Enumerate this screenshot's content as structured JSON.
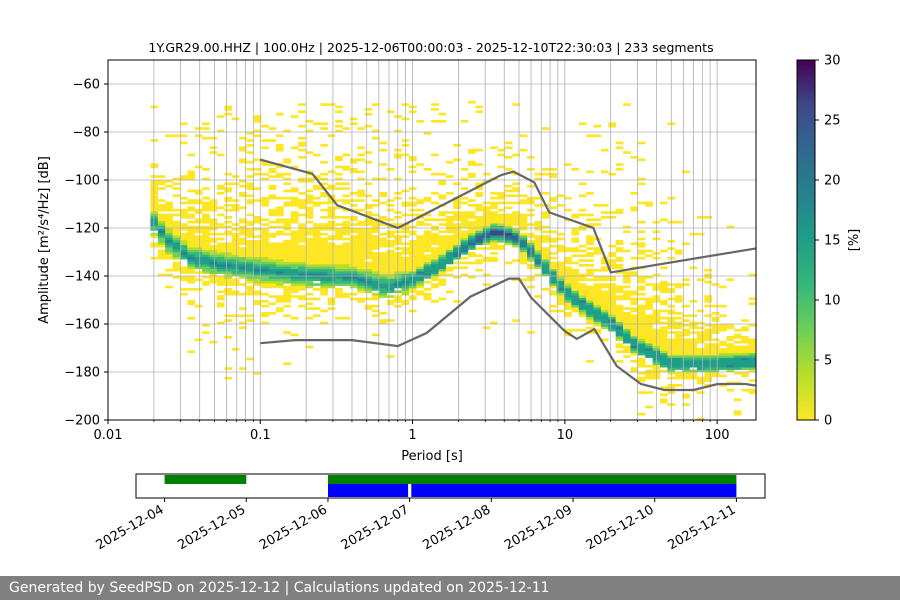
{
  "title": "1Y.GR29.00.HHZ | 100.0Hz | 2025-12-06T00:00:03 - 2025-12-10T22:30:03 | 233 segments",
  "footer": "Generated by SeedPSD on 2025-12-12 | Calculations updated on 2025-12-11",
  "colors": {
    "noise_model": "#666666",
    "availability_a": "#008000",
    "availability_b": "#0000ff",
    "grid": "#b0b0b0"
  },
  "chart_data": [
    {
      "type": "heatmap",
      "xlabel": "Period [s]",
      "ylabel": "Amplitude [m²/s⁴/Hz] [dB]",
      "xscale": "log",
      "xlim": [
        0.01,
        180
      ],
      "ylim": [
        -200,
        -50
      ],
      "xtick_values": [
        0.01,
        0.1,
        1,
        10,
        100
      ],
      "xtick_labels": [
        "0.01",
        "0.1",
        "1",
        "10",
        "100"
      ],
      "ytick_values": [
        -200,
        -180,
        -160,
        -140,
        -120,
        -100,
        -80,
        -60
      ],
      "ytick_labels": [
        "−200",
        "−180",
        "−160",
        "−140",
        "−120",
        "−100",
        "−80",
        "−60"
      ],
      "grid": true,
      "colormap": "viridis_r",
      "colorbar": {
        "label": "[%]",
        "range": [
          0,
          30
        ],
        "tick_values": [
          0,
          5,
          10,
          15,
          20,
          25,
          30
        ],
        "tick_labels": [
          "0",
          "5",
          "10",
          "15",
          "20",
          "25",
          "30"
        ]
      },
      "mode_curve": [
        {
          "period": 0.02,
          "db": -118
        },
        {
          "period": 0.025,
          "db": -126
        },
        {
          "period": 0.035,
          "db": -133
        },
        {
          "period": 0.06,
          "db": -136
        },
        {
          "period": 0.1,
          "db": -138
        },
        {
          "period": 0.2,
          "db": -140
        },
        {
          "period": 0.4,
          "db": -141
        },
        {
          "period": 0.7,
          "db": -145
        },
        {
          "period": 1.0,
          "db": -142
        },
        {
          "period": 1.5,
          "db": -136
        },
        {
          "period": 2.5,
          "db": -126
        },
        {
          "period": 3.5,
          "db": -122
        },
        {
          "period": 5.0,
          "db": -125
        },
        {
          "period": 7.0,
          "db": -135
        },
        {
          "period": 10,
          "db": -147
        },
        {
          "period": 15,
          "db": -155
        },
        {
          "period": 20,
          "db": -160
        },
        {
          "period": 30,
          "db": -170
        },
        {
          "period": 50,
          "db": -177
        },
        {
          "period": 100,
          "db": -177
        },
        {
          "period": 180,
          "db": -176
        }
      ],
      "noise_models": [
        {
          "points": [
            {
              "period": 0.1,
              "db": -91.5
            },
            {
              "period": 0.22,
              "db": -97.4
            },
            {
              "period": 0.32,
              "db": -110.5
            },
            {
              "period": 0.8,
              "db": -120.0
            },
            {
              "period": 3.8,
              "db": -98.0
            },
            {
              "period": 4.6,
              "db": -96.5
            },
            {
              "period": 6.3,
              "db": -101.0
            },
            {
              "period": 7.9,
              "db": -113.5
            },
            {
              "period": 15.4,
              "db": -120.0
            },
            {
              "period": 20,
              "db": -138.5
            },
            {
              "period": 180,
              "db": -128.5
            }
          ]
        },
        {
          "points": [
            {
              "period": 0.1,
              "db": -168.0
            },
            {
              "period": 0.17,
              "db": -166.7
            },
            {
              "period": 0.4,
              "db": -166.7
            },
            {
              "period": 0.8,
              "db": -169.2
            },
            {
              "period": 1.24,
              "db": -163.7
            },
            {
              "period": 2.4,
              "db": -148.6
            },
            {
              "period": 4.3,
              "db": -141.1
            },
            {
              "period": 5.0,
              "db": -141.1
            },
            {
              "period": 6.0,
              "db": -149.0
            },
            {
              "period": 10,
              "db": -163.0
            },
            {
              "period": 12,
              "db": -166.2
            },
            {
              "period": 15.6,
              "db": -162.1
            },
            {
              "period": 21.9,
              "db": -177.5
            },
            {
              "period": 31.6,
              "db": -185.0
            },
            {
              "period": 45,
              "db": -187.5
            },
            {
              "period": 70,
              "db": -187.5
            },
            {
              "period": 101,
              "db": -185.0
            },
            {
              "period": 154,
              "db": -185.0
            },
            {
              "period": 180,
              "db": -185.7
            }
          ]
        }
      ]
    },
    {
      "type": "timeline",
      "x_tick_labels": [
        "2025-12-04",
        "2025-12-05",
        "2025-12-06",
        "2025-12-07",
        "2025-12-08",
        "2025-12-09",
        "2025-12-10",
        "2025-12-11"
      ],
      "xlim_days": [
        -0.35,
        7.35
      ],
      "series": [
        {
          "color": "#008000",
          "row": "top",
          "segments": [
            [
              0.0,
              1.0
            ],
            [
              2.0,
              7.0
            ]
          ]
        },
        {
          "color": "#0000ff",
          "row": "bottom",
          "segments": [
            [
              2.0,
              2.98
            ],
            [
              3.02,
              7.0
            ]
          ]
        }
      ]
    }
  ]
}
